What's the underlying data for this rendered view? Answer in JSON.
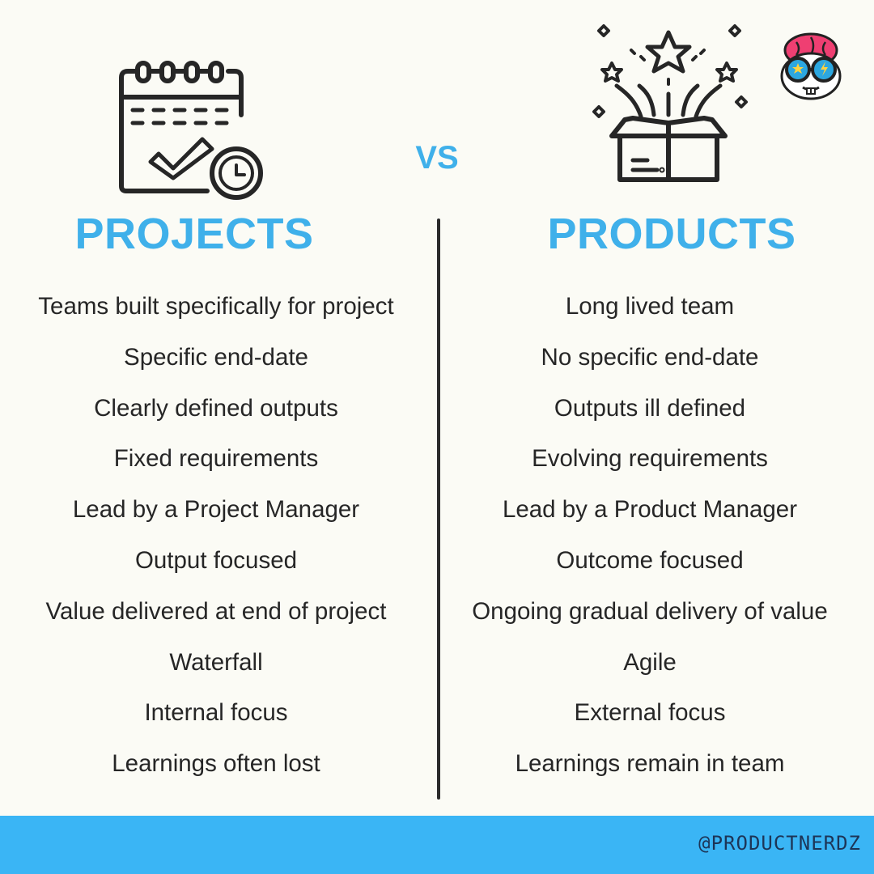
{
  "vs_label": "VS",
  "left": {
    "title": "PROJECTS",
    "icon": "calendar-check-icon",
    "items": [
      "Teams built specifically for project",
      "Specific end-date",
      "Clearly defined outputs",
      "Fixed requirements",
      "Lead by a Project Manager",
      "Output focused",
      "Value delivered at end of project",
      "Waterfall",
      "Internal focus",
      "Learnings often lost"
    ]
  },
  "right": {
    "title": "PRODUCTS",
    "icon": "open-box-stars-icon",
    "items": [
      "Long lived team",
      "No specific end-date",
      "Outputs ill defined",
      "Evolving requirements",
      "Lead by a Product Manager",
      "Outcome focused",
      "Ongoing gradual delivery of value",
      "Agile",
      "External focus",
      "Learnings remain in team"
    ]
  },
  "brand_icon": "nerd-mascot-icon",
  "footer": {
    "handle": "@PRODUCTNERDZ"
  },
  "colors": {
    "accent": "#3fb0ea",
    "footer_bg": "#3ab5f5",
    "background": "#fbfbf5",
    "text": "#262626",
    "brain": "#ef3f72"
  }
}
